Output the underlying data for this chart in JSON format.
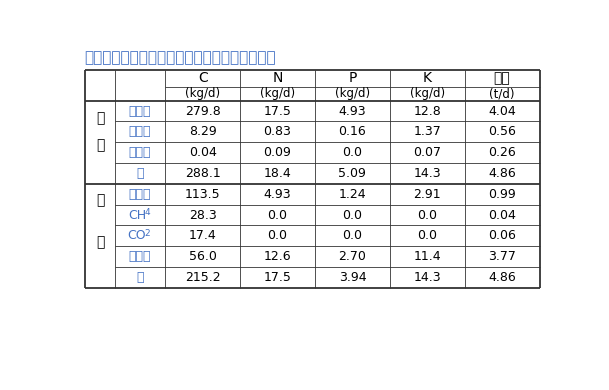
{
  "title": "表１　メタン発酵槽への投入量と生成量（例）",
  "col_headers_line1": [
    "C",
    "N",
    "P",
    "K",
    "重量"
  ],
  "col_headers_line2": [
    "(kg/d)",
    "(kg/d)",
    "(kg/d)",
    "(kg/d)",
    "(t/d)"
  ],
  "section1_label_chars": [
    "投",
    "入"
  ],
  "section1_rows": [
    [
      "ふん尿",
      "279.8",
      "17.5",
      "4.93",
      "12.8",
      "4.04"
    ],
    [
      "野菜汁",
      "8.29",
      "0.83",
      "0.16",
      "1.37",
      "0.56"
    ],
    [
      "洗浄水",
      "0.04",
      "0.09",
      "0.0",
      "0.07",
      "0.26"
    ]
  ],
  "section1_total": [
    "計",
    "288.1",
    "18.4",
    "5.09",
    "14.3",
    "4.86"
  ],
  "section2_label_chars": [
    "生",
    "成"
  ],
  "section2_rows": [
    [
      "夾雑物",
      "113.5",
      "4.93",
      "1.24",
      "2.91",
      "0.99"
    ],
    [
      "CH4",
      "28.3",
      "0.0",
      "0.0",
      "0.0",
      "0.04"
    ],
    [
      "CO2",
      "17.4",
      "0.0",
      "0.0",
      "0.0",
      "0.06"
    ],
    [
      "消化液",
      "56.0",
      "12.6",
      "2.70",
      "11.4",
      "3.77"
    ]
  ],
  "section2_total": [
    "計",
    "215.2",
    "17.5",
    "3.94",
    "14.3",
    "4.86"
  ],
  "bg_color": "#ffffff",
  "text_color": "#000000",
  "blue_color": "#4472c4",
  "title_color": "#4472c4"
}
